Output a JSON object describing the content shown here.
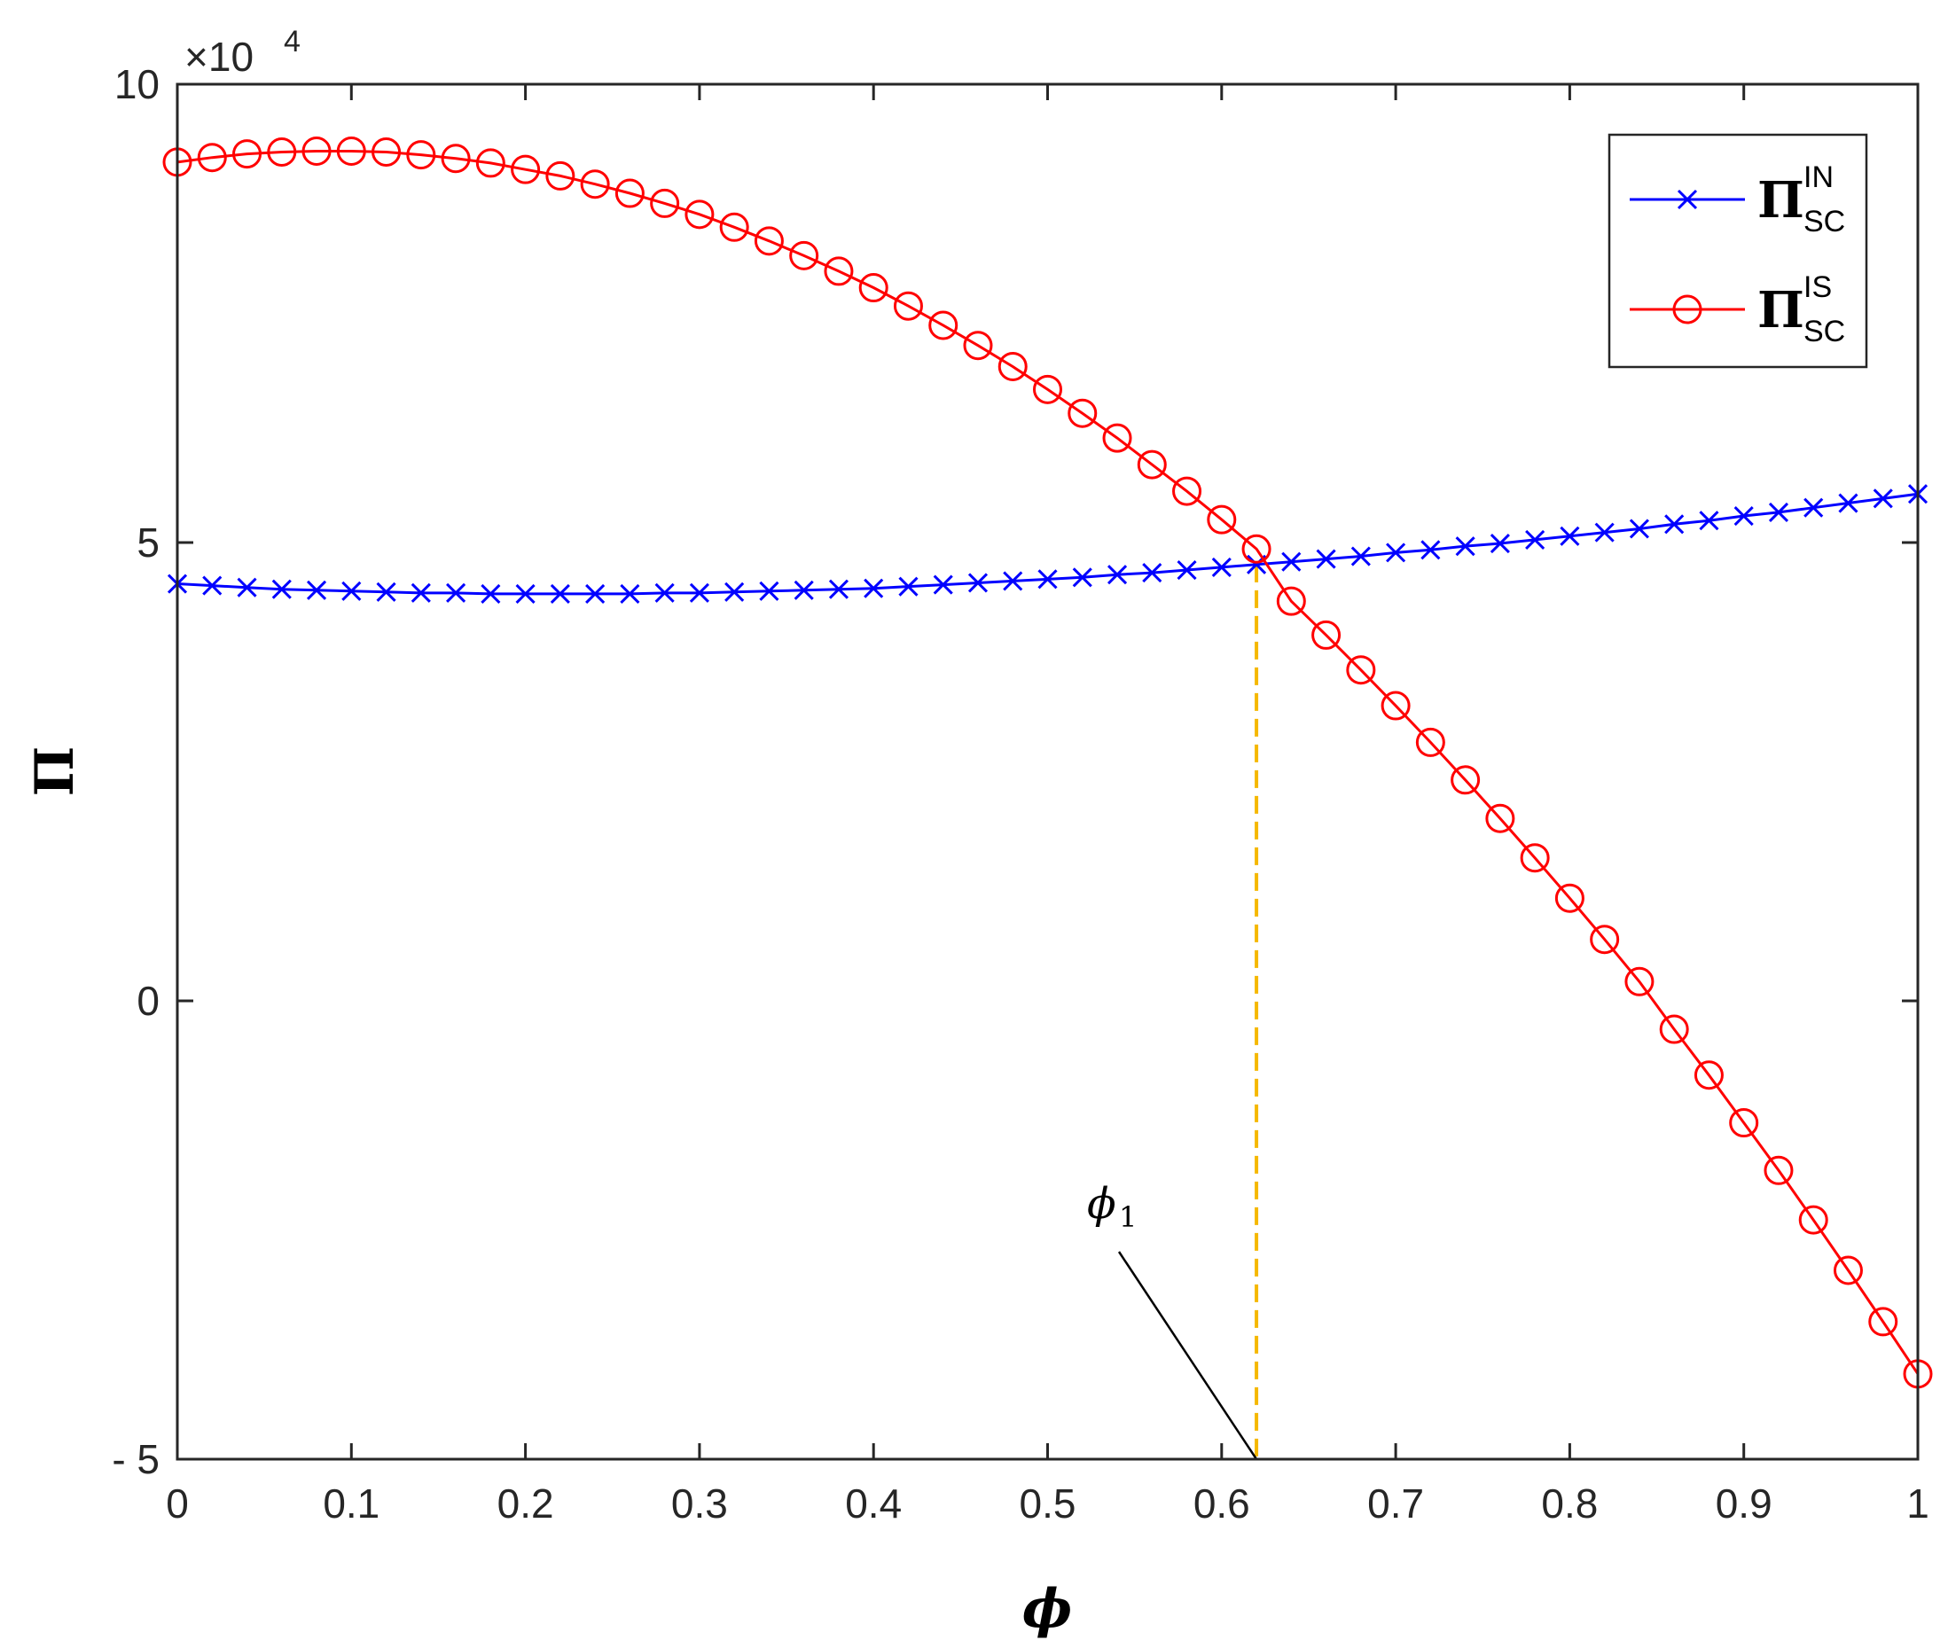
{
  "chart_data": {
    "type": "line",
    "title": "",
    "xlabel": "ϕ",
    "ylabel": "Π",
    "xlim": [
      0,
      1
    ],
    "ylim": [
      -5,
      10
    ],
    "y_scale_exponent": "×10^4",
    "exponent_base": "×10",
    "exponent_power": "4",
    "xticks": [
      "0",
      "0.1",
      "0.2",
      "0.3",
      "0.4",
      "0.5",
      "0.6",
      "0.7",
      "0.8",
      "0.9",
      "1"
    ],
    "xtick_values": [
      0,
      0.1,
      0.2,
      0.3,
      0.4,
      0.5,
      0.6,
      0.7,
      0.8,
      0.9,
      1
    ],
    "yticks": [
      "10",
      "5",
      "0",
      "- 5"
    ],
    "ytick_values": [
      10,
      5,
      0,
      -5
    ],
    "grid": false,
    "legend_position": "top-right",
    "x": [
      0,
      0.02,
      0.04,
      0.06,
      0.08,
      0.1,
      0.12,
      0.14,
      0.16,
      0.18,
      0.2,
      0.22,
      0.24,
      0.26,
      0.28,
      0.3,
      0.32,
      0.34,
      0.36,
      0.38,
      0.4,
      0.42,
      0.44,
      0.46,
      0.48,
      0.5,
      0.52,
      0.54,
      0.56,
      0.58,
      0.6,
      0.62,
      0.64,
      0.66,
      0.68,
      0.7,
      0.72,
      0.74,
      0.76,
      0.78,
      0.8,
      0.82,
      0.84,
      0.86,
      0.88,
      0.9,
      0.92,
      0.94,
      0.96,
      0.98,
      1.0
    ],
    "series": [
      {
        "name": "Π_SC^IN",
        "legend_main": "Π",
        "legend_sup": "IN",
        "legend_sub": "SC",
        "color": "#0000ff",
        "marker": "x",
        "values": [
          4.55,
          4.53,
          4.51,
          4.49,
          4.48,
          4.47,
          4.46,
          4.45,
          4.45,
          4.44,
          4.44,
          4.44,
          4.44,
          4.44,
          4.45,
          4.45,
          4.46,
          4.47,
          4.48,
          4.49,
          4.5,
          4.52,
          4.54,
          4.56,
          4.58,
          4.6,
          4.62,
          4.65,
          4.67,
          4.7,
          4.73,
          4.76,
          4.79,
          4.82,
          4.85,
          4.89,
          4.92,
          4.96,
          4.99,
          5.03,
          5.07,
          5.11,
          5.15,
          5.2,
          5.24,
          5.29,
          5.33,
          5.38,
          5.43,
          5.48,
          5.53
        ]
      },
      {
        "name": "Π_SC^IS",
        "legend_main": "Π",
        "legend_sup": "IS",
        "legend_sub": "SC",
        "color": "#ff0000",
        "marker": "o",
        "values": [
          9.15,
          9.2,
          9.24,
          9.26,
          9.27,
          9.27,
          9.26,
          9.23,
          9.19,
          9.14,
          9.07,
          9.0,
          8.91,
          8.81,
          8.7,
          8.58,
          8.44,
          8.29,
          8.13,
          7.96,
          7.78,
          7.58,
          7.37,
          7.15,
          6.92,
          6.67,
          6.41,
          6.14,
          5.85,
          5.56,
          5.25,
          4.93,
          4.36,
          3.99,
          3.61,
          3.22,
          2.82,
          2.41,
          1.99,
          1.56,
          1.12,
          0.67,
          0.21,
          -0.31,
          -0.81,
          -1.33,
          -1.85,
          -2.39,
          -2.94,
          -3.5,
          -4.07
        ]
      }
    ],
    "annotation": {
      "label": "ϕ",
      "subscript": "1",
      "x": 0.62,
      "y": 4.76,
      "line_color": "#f5b800"
    }
  }
}
